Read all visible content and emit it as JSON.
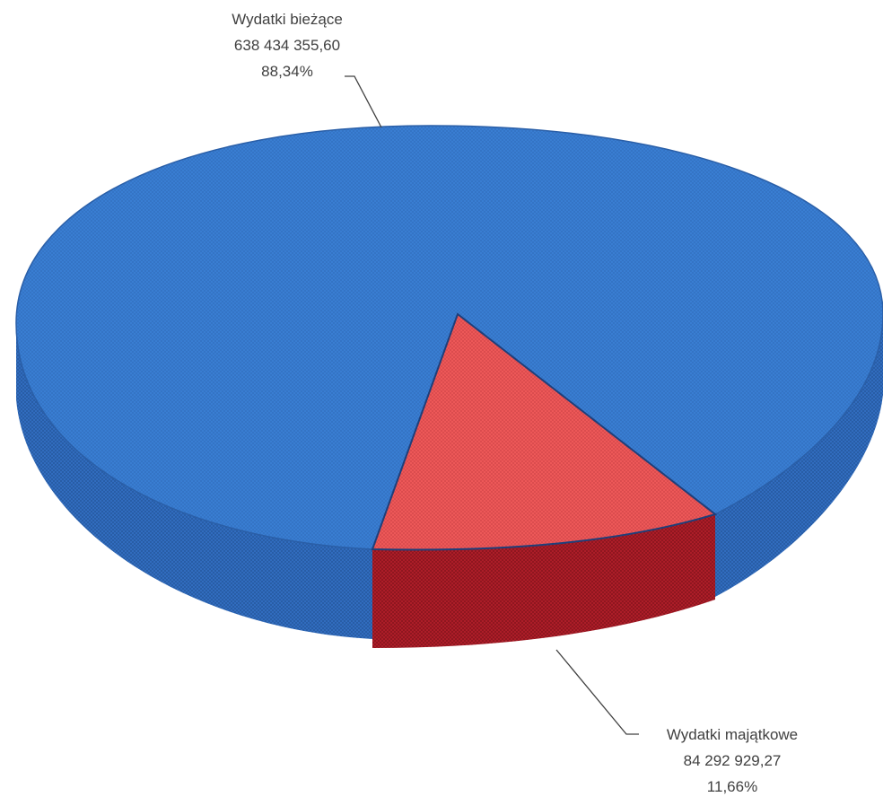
{
  "chart_data": {
    "type": "pie",
    "style": "3d",
    "title": "",
    "series": [
      {
        "name": "Wydatki bieżące",
        "value": 638434355.6,
        "value_label": "638 434 355,60",
        "percent_label": "88,34%",
        "color": "#3A7FD5",
        "side_color": "#2F68B8"
      },
      {
        "name": "Wydatki majątkowe",
        "value": 84292929.27,
        "value_label": "84 292 929,27",
        "percent_label": "11,66%",
        "color": "#F05A5A",
        "side_color": "#B51F2A"
      }
    ],
    "legend": "none"
  }
}
